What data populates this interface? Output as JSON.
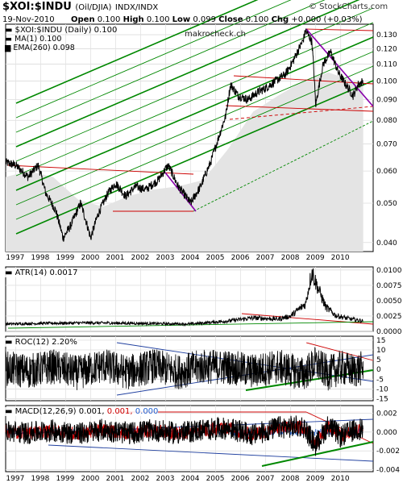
{
  "header": {
    "symbol": "$XOI:$INDU",
    "symbol_sub": "(Oil/DJIA)",
    "exchange": "INDX/INDX",
    "date": "19-Nov-2010",
    "open_label": "Open",
    "open": "0.100",
    "high_label": "High",
    "high": "0.100",
    "low_label": "Low",
    "low": "0.099",
    "close_label": "Close",
    "close": "0.100",
    "chg_label": "Chg",
    "chg": "+0.000 (+0.03%)",
    "credit": "© StockCharts.com",
    "watermark": "makrocheck.ch"
  },
  "legend": {
    "main": "$XOI:$INDU (Daily) 0.100",
    "ma": "MA(1) 0.100",
    "ema": "EMA(260) 0.098"
  },
  "panels": {
    "atr_label": "ATR(14) 0.0017",
    "roc_label": "ROC(12) 2.20%",
    "macd_label_prefix": "MACD(12,26,9)",
    "macd_v1": "0.001,",
    "macd_v2": "0.001,",
    "macd_v3": "0.000"
  },
  "colors": {
    "price": "#000000",
    "channel_green": "#008800",
    "resistance_red": "#cc0000",
    "trend_purple": "#8800aa",
    "ema_fill": "#e4e4e4",
    "macd_signal": "#cc0000",
    "macd_hist": "#1f5fcf"
  },
  "chart_data": [
    {
      "type": "line",
      "panel": "price",
      "ylim": [
        0.038,
        0.138
      ],
      "y_scale": "log",
      "y_ticks": [
        "0.130",
        "0.120",
        "0.110",
        "0.100",
        "0.090",
        "0.080",
        "0.070",
        "0.060",
        "0.050",
        "0.040"
      ],
      "x_ticks": [
        "1997",
        "1998",
        "1999",
        "2000",
        "2001",
        "2002",
        "2003",
        "2004",
        "2005",
        "2006",
        "2007",
        "2008",
        "2009",
        "2010"
      ],
      "x_range": [
        1996.6,
        2011.3
      ],
      "series": [
        {
          "name": "$XOI:$INDU",
          "x": [
            1996.6,
            1997.0,
            1997.5,
            1997.9,
            1998.2,
            1998.6,
            1998.9,
            1999.2,
            1999.6,
            2000.0,
            2000.3,
            2000.7,
            2001.0,
            2001.4,
            2001.8,
            2002.2,
            2002.7,
            2003.1,
            2003.5,
            2004.0,
            2004.4,
            2004.8,
            2005.1,
            2005.4,
            2005.6,
            2005.9,
            2006.3,
            2006.7,
            2007.0,
            2007.4,
            2007.8,
            2008.1,
            2008.5,
            2008.6,
            2008.85,
            2009.0,
            2009.3,
            2009.6,
            2009.9,
            2010.2,
            2010.5,
            2010.7,
            2010.9
          ],
          "values": [
            0.063,
            0.062,
            0.058,
            0.062,
            0.053,
            0.048,
            0.041,
            0.044,
            0.05,
            0.041,
            0.047,
            0.053,
            0.056,
            0.052,
            0.055,
            0.054,
            0.057,
            0.062,
            0.055,
            0.05,
            0.055,
            0.063,
            0.072,
            0.082,
            0.098,
            0.092,
            0.09,
            0.094,
            0.096,
            0.1,
            0.104,
            0.112,
            0.126,
            0.133,
            0.125,
            0.087,
            0.11,
            0.118,
            0.105,
            0.098,
            0.092,
            0.098,
            0.1
          ]
        },
        {
          "name": "EMA(260)",
          "x": [
            1996.6,
            1997.5,
            1998.5,
            1999.5,
            2000.5,
            2001.5,
            2002.5,
            2003.5,
            2004.5,
            2005.5,
            2006.5,
            2007.5,
            2008.5,
            2009.5,
            2010.9
          ],
          "values": [
            0.058,
            0.06,
            0.058,
            0.051,
            0.049,
            0.052,
            0.054,
            0.055,
            0.057,
            0.068,
            0.084,
            0.092,
            0.1,
            0.105,
            0.098
          ]
        }
      ]
    },
    {
      "type": "line",
      "panel": "ATR(14)",
      "ylim": [
        0.0,
        0.0105
      ],
      "y_ticks": [
        "0.0100",
        "0.0075",
        "0.0050",
        "0.0025",
        "0.0000"
      ],
      "series": [
        {
          "name": "ATR(14)",
          "x": [
            1996.6,
            1998.0,
            2000.0,
            2002.0,
            2004.0,
            2005.5,
            2006.5,
            2007.5,
            2008.0,
            2008.6,
            2008.85,
            2009.0,
            2009.4,
            2009.8,
            2010.4,
            2010.9
          ],
          "values": [
            0.0012,
            0.0013,
            0.0014,
            0.0013,
            0.0012,
            0.0017,
            0.0022,
            0.002,
            0.0025,
            0.0045,
            0.0098,
            0.008,
            0.004,
            0.0026,
            0.002,
            0.0017
          ]
        }
      ]
    },
    {
      "type": "line",
      "panel": "ROC(12)",
      "ylim": [
        -16,
        17
      ],
      "y_ticks": [
        "15",
        "10",
        "5",
        "0",
        "-5",
        "-10",
        "-15"
      ],
      "series": [
        {
          "name": "ROC(12)",
          "x": [
            1996.6,
            1997.5,
            1998.5,
            1999.5,
            2000.5,
            2001.5,
            2002.5,
            2003.5,
            2004.5,
            2005.5,
            2006.5,
            2007.5,
            2008.5,
            2009.0,
            2009.5,
            2010.0,
            2010.5,
            2010.9
          ],
          "values": [
            2,
            -3,
            5,
            -6,
            7,
            -5,
            6,
            -4,
            5,
            4,
            -3,
            5,
            -8,
            10,
            -6,
            3,
            -2,
            2.2
          ]
        }
      ]
    },
    {
      "type": "line",
      "panel": "MACD(12,26,9)",
      "ylim": [
        -0.0042,
        0.0028
      ],
      "y_ticks": [
        "0.002",
        "0.000",
        "-0.002",
        "-0.004"
      ],
      "series": [
        {
          "name": "MACD",
          "x": [
            1996.6,
            1997.5,
            1998.5,
            1999.5,
            2000.5,
            2001.5,
            2002.5,
            2003.5,
            2004.5,
            2005.5,
            2006.5,
            2007.5,
            2008.5,
            2009.0,
            2009.5,
            2010.0,
            2010.5,
            2010.9
          ],
          "values": [
            0.0002,
            -0.0003,
            0.0004,
            -0.0005,
            0.0006,
            -0.0004,
            0.0005,
            -0.0004,
            0.0006,
            0.001,
            -0.0008,
            0.0012,
            0.0015,
            -0.0035,
            0.0018,
            -0.0012,
            0.0004,
            0.001
          ]
        }
      ]
    }
  ]
}
